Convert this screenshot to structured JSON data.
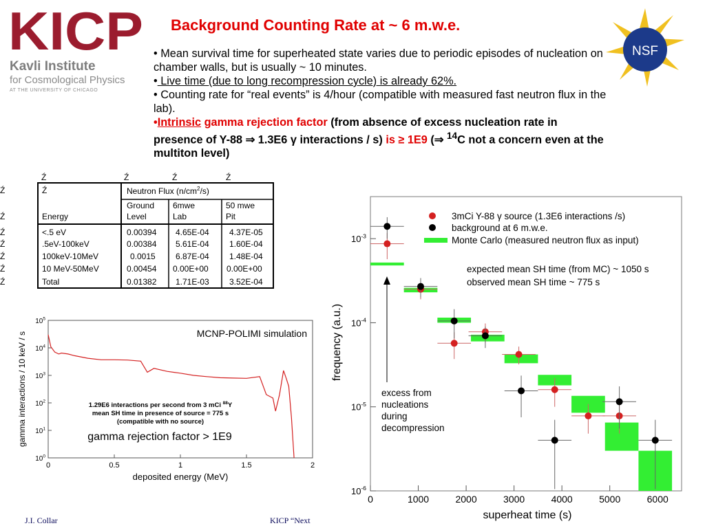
{
  "logo": {
    "mark": "KICP",
    "line1": "Kavli Institute",
    "line2": "for Cosmological Physics",
    "line3": "AT THE UNIVERSITY OF CHICAGO",
    "color": "#9b1c2e"
  },
  "title": "Background Counting Rate at ~ 6 m.w.e.",
  "bullets": {
    "b1": "• Mean survival time for superheated state varies due to periodic episodes of nucleation on chamber walls, but is usually ~ 10 minutes.",
    "b2_prefix": "•",
    "b2": " Live time (due to long recompression cycle) is already 62%.",
    "b3": "• Counting rate for  “real events” is 4/hour (compatible with measured fast neutron flux in the lab).",
    "b4_dot": "•",
    "b4_intrinsic": "Intrinsic",
    "b4_gamma": " gamma rejection factor ",
    "b4_rest1": "(from absence of excess nucleation rate in presence of  Y-88 ⇒ 1.3E6 γ interactions / s) ",
    "b4_is": "is ≥ 1E9",
    "b4_rest2": " (⇒ ",
    "b4_sup": "14",
    "b4_rest3": "C not a concern even at the multiton level)"
  },
  "nsf": {
    "label": "NSF"
  },
  "flux_table": {
    "glyph": "Ź",
    "top_glyphs": [
      "Ź",
      "Ź",
      "Ź",
      "Ź"
    ],
    "group_header": "Neutron Flux (n/cm",
    "group_header_sup": "2",
    "group_header_end": "/s)",
    "energy_header": "Energy",
    "columns": [
      {
        "line1": "Ground",
        "line2": "Level"
      },
      {
        "line1": "6mwe",
        "line2": "Lab"
      },
      {
        "line1": "50 mwe",
        "line2": "Pit"
      }
    ],
    "rows": [
      {
        "energy": "<.5 eV",
        "ground": "0.00394",
        "lab": "4.65E-04",
        "pit": "4.37E-05"
      },
      {
        "energy": ".5eV-100keV",
        "ground": "0.00384",
        "lab": "5.61E-04",
        "pit": "1.60E-04"
      },
      {
        "energy": "100keV-10MeV",
        "ground": "0.0015",
        "lab": "6.87E-04",
        "pit": "1.48E-04"
      },
      {
        "energy": "10 MeV-50MeV",
        "ground": "0.00454",
        "lab": "0.00E+00",
        "pit": "0.00E+00"
      },
      {
        "energy": "Total",
        "ground": "0.01382",
        "lab": "1.71E-03",
        "pit": "3.52E-04"
      }
    ]
  },
  "chart_data": [
    {
      "type": "line",
      "xlabel": "deposited energy (MeV)",
      "ylabel": "gamma interactions / 10 keV / s",
      "xlim": [
        0,
        2
      ],
      "ylim_log10": [
        0,
        5
      ],
      "x_ticks": [
        "0",
        "0.5",
        "1",
        "1.5",
        "2"
      ],
      "y_tick_exponents": [
        "0",
        "1",
        "2",
        "3",
        "4",
        "5"
      ],
      "y_tick_base": "10",
      "annotation_title": "MCNP-POLIMI simulation",
      "annotation_lines": [
        "1.29E6 interactions per second from 3 mCi ",
        "88",
        "Y",
        "mean SH time in presence of source = 775 s",
        "(compatible with no source)"
      ],
      "annotation_big": "gamma rejection factor > 1E9",
      "series_color": "#d42020",
      "x": [
        0.0,
        0.02,
        0.05,
        0.08,
        0.1,
        0.15,
        0.2,
        0.3,
        0.4,
        0.5,
        0.6,
        0.7,
        0.75,
        0.8,
        0.9,
        1.0,
        1.1,
        1.2,
        1.3,
        1.4,
        1.5,
        1.6,
        1.65,
        1.7,
        1.72,
        1.75,
        1.78,
        1.8,
        1.82,
        1.84,
        1.86
      ],
      "y": [
        30000,
        11000,
        7000,
        6000,
        6500,
        6000,
        5200,
        4200,
        3700,
        3700,
        3600,
        3300,
        1300,
        1800,
        1400,
        1200,
        1000,
        900,
        820,
        800,
        780,
        900,
        200,
        150,
        50,
        200,
        1500,
        800,
        400,
        30,
        1
      ]
    },
    {
      "type": "scatter",
      "xlabel": "superheat time (s)",
      "ylabel": "frequency (a.u.)",
      "xlim": [
        0,
        6500
      ],
      "ylim_log10": [
        -6,
        -2.5
      ],
      "x_ticks": [
        "0",
        "1000",
        "2000",
        "3000",
        "4000",
        "5000",
        "6000"
      ],
      "y_tick_exponents": [
        "-3",
        "-4",
        "-5",
        "-6"
      ],
      "y_tick_base": "10",
      "legend_position": "top-right",
      "legend": [
        {
          "label_pre": "3mCi Y-88 ",
          "label_sym": "γ",
          "label_post": " source (1.3E6 interactions /s)",
          "color": "#d42020",
          "kind": "dot"
        },
        {
          "label_pre": "background at 6 m.w.e.",
          "label_sym": "",
          "label_post": "",
          "color": "#000000",
          "kind": "dot"
        },
        {
          "label_pre": "Monte Carlo (measured neutron flux as input)",
          "label_sym": "",
          "label_post": "",
          "color": "#33ee33",
          "kind": "bar"
        }
      ],
      "annotations": {
        "expected": "expected mean SH time (from MC) ~ 1050 s",
        "observed": "observed mean SH time ~ 775 s",
        "excess": [
          "excess from",
          "nucleations",
          "during",
          "decompression"
        ]
      },
      "series": [
        {
          "name": "3mCi Y-88 γ source (1.3E6 interactions /s)",
          "color": "#d42020",
          "x": [
            350,
            1050,
            1750,
            2400,
            3100,
            3850,
            4550,
            5200
          ],
          "y": [
            0.00087,
            0.00025,
            5.7e-05,
            7.8e-05,
            4.2e-05,
            1.6e-05,
            7.8e-06,
            7.8e-06
          ],
          "err_lo": [
            0.0003,
            6e-05,
            2e-05,
            2e-05,
            1e-05,
            6e-06,
            3e-06,
            3e-06
          ],
          "err_hi": [
            0.0003,
            6e-05,
            2e-05,
            2e-05,
            1e-05,
            6e-06,
            3e-06,
            3e-06
          ]
        },
        {
          "name": "background at 6 m.w.e.",
          "color": "#000000",
          "x": [
            350,
            1050,
            1750,
            2400,
            3150,
            3850,
            5200,
            5950
          ],
          "y": [
            0.0014,
            0.00027,
            0.000105,
            7e-05,
            1.55e-05,
            4e-06,
            1.15e-05,
            4e-06
          ],
          "err_lo": [
            0.0004,
            7e-05,
            4e-05,
            2e-05,
            8e-06,
            3e-06,
            6e-06,
            3e-06
          ],
          "err_hi": [
            0.0004,
            7e-05,
            4e-05,
            2e-05,
            8e-06,
            3e-06,
            6e-06,
            3e-06
          ]
        },
        {
          "name": "Monte Carlo (measured neutron flux as input)",
          "color": "#33ee33",
          "x_lo": [
            0,
            700,
            1400,
            2100,
            2800,
            3500,
            4200,
            4900,
            5600
          ],
          "x_hi": [
            700,
            1400,
            2100,
            2800,
            3500,
            4200,
            4900,
            5600,
            6300
          ],
          "y_lo": [
            0.00048,
            0.00023,
            0.0001,
            6e-05,
            3.3e-05,
            1.8e-05,
            8.5e-06,
            3e-06,
            1e-06
          ],
          "y_hi": [
            0.00052,
            0.00026,
            0.000115,
            7.2e-05,
            4.2e-05,
            2.4e-05,
            1.35e-05,
            6.5e-06,
            3e-06
          ]
        }
      ]
    }
  ],
  "footer": {
    "left": "J.I. Collar",
    "right": "KICP “Next"
  }
}
